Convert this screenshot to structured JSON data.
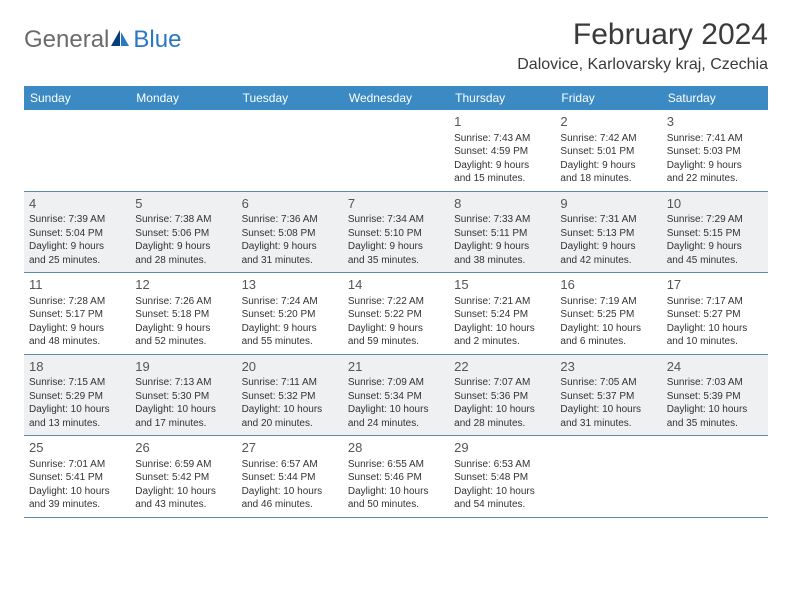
{
  "logo": {
    "general": "General",
    "blue": "Blue"
  },
  "title": {
    "month": "February 2024",
    "location": "Dalovice, Karlovarsky kraj, Czechia"
  },
  "style": {
    "header_bg": "#3b8ac4",
    "header_text": "#ffffff",
    "shade_bg": "#eef0f2",
    "border": "#5a8bb0",
    "title_fontsize": 30,
    "location_fontsize": 16,
    "weekday_fontsize": 12,
    "daynum_fontsize": 13,
    "body_fontsize": 10
  },
  "weekdays": [
    "Sunday",
    "Monday",
    "Tuesday",
    "Wednesday",
    "Thursday",
    "Friday",
    "Saturday"
  ],
  "weeks": [
    {
      "shaded": false,
      "days": [
        null,
        null,
        null,
        null,
        {
          "n": "1",
          "sr": "Sunrise: 7:43 AM",
          "ss": "Sunset: 4:59 PM",
          "d1": "Daylight: 9 hours",
          "d2": "and 15 minutes."
        },
        {
          "n": "2",
          "sr": "Sunrise: 7:42 AM",
          "ss": "Sunset: 5:01 PM",
          "d1": "Daylight: 9 hours",
          "d2": "and 18 minutes."
        },
        {
          "n": "3",
          "sr": "Sunrise: 7:41 AM",
          "ss": "Sunset: 5:03 PM",
          "d1": "Daylight: 9 hours",
          "d2": "and 22 minutes."
        }
      ]
    },
    {
      "shaded": true,
      "days": [
        {
          "n": "4",
          "sr": "Sunrise: 7:39 AM",
          "ss": "Sunset: 5:04 PM",
          "d1": "Daylight: 9 hours",
          "d2": "and 25 minutes."
        },
        {
          "n": "5",
          "sr": "Sunrise: 7:38 AM",
          "ss": "Sunset: 5:06 PM",
          "d1": "Daylight: 9 hours",
          "d2": "and 28 minutes."
        },
        {
          "n": "6",
          "sr": "Sunrise: 7:36 AM",
          "ss": "Sunset: 5:08 PM",
          "d1": "Daylight: 9 hours",
          "d2": "and 31 minutes."
        },
        {
          "n": "7",
          "sr": "Sunrise: 7:34 AM",
          "ss": "Sunset: 5:10 PM",
          "d1": "Daylight: 9 hours",
          "d2": "and 35 minutes."
        },
        {
          "n": "8",
          "sr": "Sunrise: 7:33 AM",
          "ss": "Sunset: 5:11 PM",
          "d1": "Daylight: 9 hours",
          "d2": "and 38 minutes."
        },
        {
          "n": "9",
          "sr": "Sunrise: 7:31 AM",
          "ss": "Sunset: 5:13 PM",
          "d1": "Daylight: 9 hours",
          "d2": "and 42 minutes."
        },
        {
          "n": "10",
          "sr": "Sunrise: 7:29 AM",
          "ss": "Sunset: 5:15 PM",
          "d1": "Daylight: 9 hours",
          "d2": "and 45 minutes."
        }
      ]
    },
    {
      "shaded": false,
      "days": [
        {
          "n": "11",
          "sr": "Sunrise: 7:28 AM",
          "ss": "Sunset: 5:17 PM",
          "d1": "Daylight: 9 hours",
          "d2": "and 48 minutes."
        },
        {
          "n": "12",
          "sr": "Sunrise: 7:26 AM",
          "ss": "Sunset: 5:18 PM",
          "d1": "Daylight: 9 hours",
          "d2": "and 52 minutes."
        },
        {
          "n": "13",
          "sr": "Sunrise: 7:24 AM",
          "ss": "Sunset: 5:20 PM",
          "d1": "Daylight: 9 hours",
          "d2": "and 55 minutes."
        },
        {
          "n": "14",
          "sr": "Sunrise: 7:22 AM",
          "ss": "Sunset: 5:22 PM",
          "d1": "Daylight: 9 hours",
          "d2": "and 59 minutes."
        },
        {
          "n": "15",
          "sr": "Sunrise: 7:21 AM",
          "ss": "Sunset: 5:24 PM",
          "d1": "Daylight: 10 hours",
          "d2": "and 2 minutes."
        },
        {
          "n": "16",
          "sr": "Sunrise: 7:19 AM",
          "ss": "Sunset: 5:25 PM",
          "d1": "Daylight: 10 hours",
          "d2": "and 6 minutes."
        },
        {
          "n": "17",
          "sr": "Sunrise: 7:17 AM",
          "ss": "Sunset: 5:27 PM",
          "d1": "Daylight: 10 hours",
          "d2": "and 10 minutes."
        }
      ]
    },
    {
      "shaded": true,
      "days": [
        {
          "n": "18",
          "sr": "Sunrise: 7:15 AM",
          "ss": "Sunset: 5:29 PM",
          "d1": "Daylight: 10 hours",
          "d2": "and 13 minutes."
        },
        {
          "n": "19",
          "sr": "Sunrise: 7:13 AM",
          "ss": "Sunset: 5:30 PM",
          "d1": "Daylight: 10 hours",
          "d2": "and 17 minutes."
        },
        {
          "n": "20",
          "sr": "Sunrise: 7:11 AM",
          "ss": "Sunset: 5:32 PM",
          "d1": "Daylight: 10 hours",
          "d2": "and 20 minutes."
        },
        {
          "n": "21",
          "sr": "Sunrise: 7:09 AM",
          "ss": "Sunset: 5:34 PM",
          "d1": "Daylight: 10 hours",
          "d2": "and 24 minutes."
        },
        {
          "n": "22",
          "sr": "Sunrise: 7:07 AM",
          "ss": "Sunset: 5:36 PM",
          "d1": "Daylight: 10 hours",
          "d2": "and 28 minutes."
        },
        {
          "n": "23",
          "sr": "Sunrise: 7:05 AM",
          "ss": "Sunset: 5:37 PM",
          "d1": "Daylight: 10 hours",
          "d2": "and 31 minutes."
        },
        {
          "n": "24",
          "sr": "Sunrise: 7:03 AM",
          "ss": "Sunset: 5:39 PM",
          "d1": "Daylight: 10 hours",
          "d2": "and 35 minutes."
        }
      ]
    },
    {
      "shaded": false,
      "days": [
        {
          "n": "25",
          "sr": "Sunrise: 7:01 AM",
          "ss": "Sunset: 5:41 PM",
          "d1": "Daylight: 10 hours",
          "d2": "and 39 minutes."
        },
        {
          "n": "26",
          "sr": "Sunrise: 6:59 AM",
          "ss": "Sunset: 5:42 PM",
          "d1": "Daylight: 10 hours",
          "d2": "and 43 minutes."
        },
        {
          "n": "27",
          "sr": "Sunrise: 6:57 AM",
          "ss": "Sunset: 5:44 PM",
          "d1": "Daylight: 10 hours",
          "d2": "and 46 minutes."
        },
        {
          "n": "28",
          "sr": "Sunrise: 6:55 AM",
          "ss": "Sunset: 5:46 PM",
          "d1": "Daylight: 10 hours",
          "d2": "and 50 minutes."
        },
        {
          "n": "29",
          "sr": "Sunrise: 6:53 AM",
          "ss": "Sunset: 5:48 PM",
          "d1": "Daylight: 10 hours",
          "d2": "and 54 minutes."
        },
        null,
        null
      ]
    }
  ]
}
